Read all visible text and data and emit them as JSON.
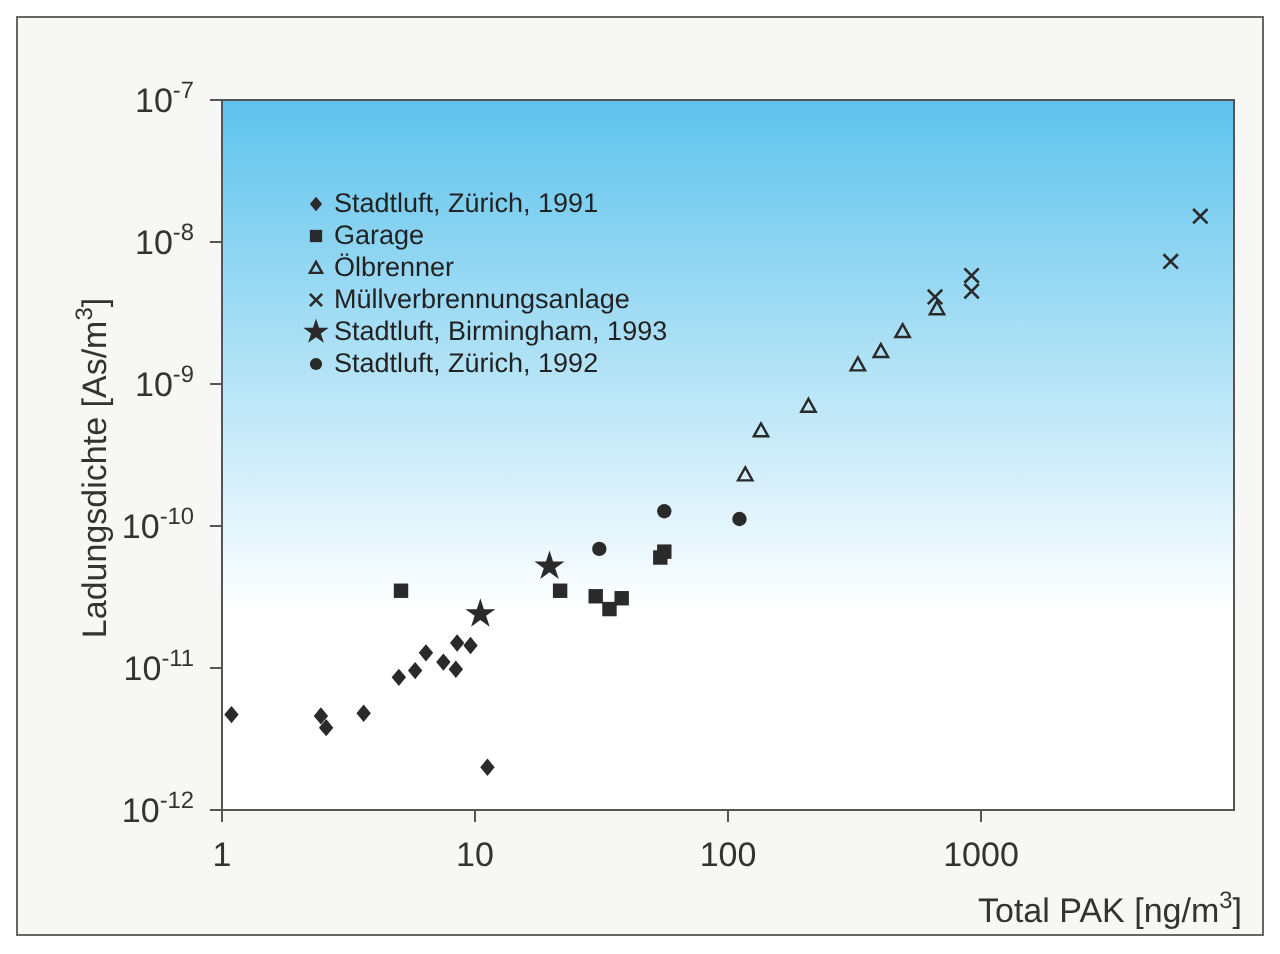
{
  "chart_data": {
    "type": "scatter",
    "xlabel": "Total PAK [ng/m$^{3}$]",
    "ylabel": "Ladungsdichte [As/m$^{3}$]",
    "log": "xy",
    "xlim": [
      1,
      10000
    ],
    "xticks": [
      1,
      10,
      100,
      1000
    ],
    "ylim": [
      1e-12,
      1e-07
    ],
    "yticks": [
      {
        "value": 1e-12,
        "label": "10$^{-12}$"
      },
      {
        "value": 1e-11,
        "label": "10$^{-11}$"
      },
      {
        "value": 1e-10,
        "label": "10$^{-10}$"
      },
      {
        "value": 1e-09,
        "label": "10$^{-9}$"
      },
      {
        "value": 1e-08,
        "label": "10$^{-8}$"
      },
      {
        "value": 1e-07,
        "label": "10$^{-7}$"
      }
    ],
    "legend": "top left",
    "grid": false,
    "series": [
      {
        "name": "Stadtluft, Zürich, 1991",
        "color": "#2a2a2a",
        "marker": "diamond",
        "x": [
          1.09,
          2.46,
          2.58,
          3.63,
          5.0,
          5.8,
          6.4,
          7.5,
          8.4,
          8.5,
          9.6,
          11.2
        ],
        "values": [
          4.7e-12,
          4.6e-12,
          3.8e-12,
          4.8e-12,
          8.6e-12,
          9.6e-12,
          1.28e-11,
          1.1e-11,
          9.8e-12,
          1.5e-11,
          1.44e-11,
          2e-12
        ]
      },
      {
        "name": "Garage",
        "color": "#2a2a2a",
        "marker": "square",
        "x": [
          5.1,
          21.7,
          30,
          34,
          38,
          54,
          56
        ],
        "values": [
          3.5e-11,
          3.5e-11,
          3.2e-11,
          2.6e-11,
          3.1e-11,
          6e-11,
          6.6e-11
        ]
      },
      {
        "name": "Ölbrenner",
        "color": "#2a2a2a",
        "marker": "triangle",
        "x": [
          117,
          135,
          208,
          326,
          402,
          490,
          670
        ],
        "values": [
          2.3e-10,
          4.7e-10,
          7e-10,
          1.37e-09,
          1.7e-09,
          2.35e-09,
          3.4e-09
        ]
      },
      {
        "name": "Müllverbrennungsanlage",
        "color": "#2a2a2a",
        "marker": "cross",
        "x": [
          658,
          918,
          918,
          5620,
          7360
        ],
        "values": [
          4.1e-09,
          5.8e-09,
          4.5e-09,
          7.3e-09,
          1.52e-08
        ]
      },
      {
        "name": "Stadtluft, Birmingham, 1993",
        "color": "#2a2a2a",
        "marker": "star",
        "x": [
          10.5,
          19.7
        ],
        "values": [
          2.4e-11,
          5.2e-11
        ]
      },
      {
        "name": "Stadtluft, Zürich, 1992",
        "color": "#2a2a2a",
        "marker": "circle",
        "x": [
          31,
          56,
          111
        ],
        "values": [
          6.9e-11,
          1.27e-10,
          1.12e-10
        ]
      }
    ]
  }
}
